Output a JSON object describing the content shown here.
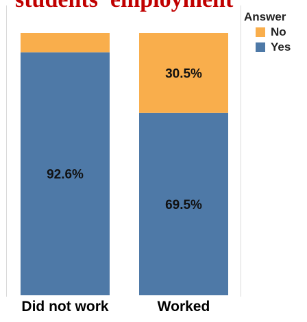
{
  "chart_data": {
    "type": "bar",
    "stacked": true,
    "normalized": true,
    "title": "students' employment",
    "categories": [
      "Did not work",
      "Worked"
    ],
    "series": [
      {
        "name": "Yes",
        "values": [
          92.6,
          69.5
        ],
        "labels": [
          "92.6%",
          "69.5%"
        ],
        "color": "#4e79a7"
      },
      {
        "name": "No",
        "values": [
          7.4,
          30.5
        ],
        "labels": [
          "",
          "30.5%"
        ],
        "color": "#f9ae4c"
      }
    ],
    "ylim": [
      0,
      100
    ],
    "legend": {
      "title": "Answer",
      "placement": "top-right",
      "order": [
        "No",
        "Yes"
      ]
    },
    "grid": false
  }
}
